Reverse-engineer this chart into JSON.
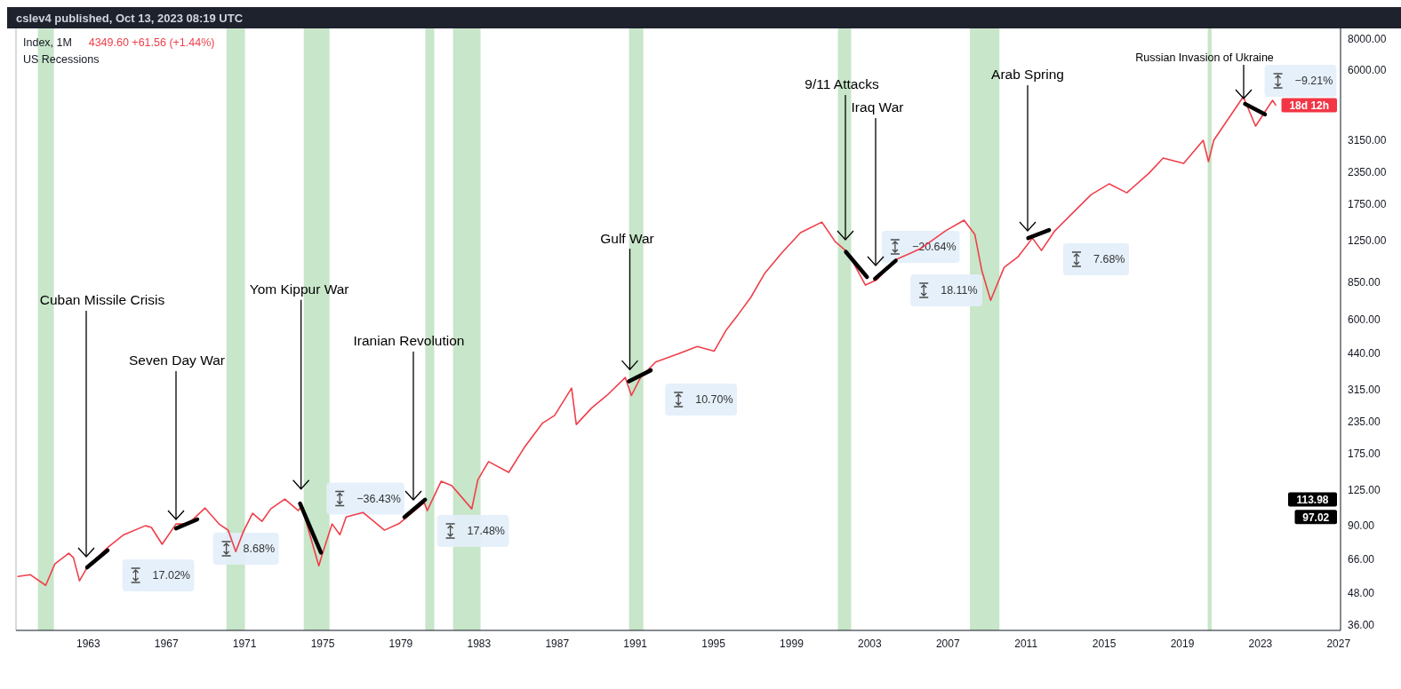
{
  "chart_data": {
    "type": "line",
    "title": "Index, 1M",
    "subtitle": "US Recessions",
    "xlim": [
      1959.3,
      2027.1
    ],
    "xticks": [
      1963,
      1967,
      1971,
      1975,
      1979,
      1983,
      1987,
      1991,
      1995,
      1999,
      2003,
      2007,
      2011,
      2015,
      2019,
      2023,
      2027
    ],
    "ylim": [
      34.1,
      8830
    ],
    "log": true,
    "yticks": [
      {
        "value": 36,
        "label": "36.00"
      },
      {
        "value": 48,
        "label": "48.00"
      },
      {
        "value": 66,
        "label": "66.00"
      },
      {
        "value": 90,
        "label": "90.00"
      },
      {
        "value": 125,
        "label": "125.00"
      },
      {
        "value": 175,
        "label": "175.00"
      },
      {
        "value": 235,
        "label": "235.00"
      },
      {
        "value": 315,
        "label": "315.00"
      },
      {
        "value": 440,
        "label": "440.00"
      },
      {
        "value": 600,
        "label": "600.00"
      },
      {
        "value": 850,
        "label": "850.00"
      },
      {
        "value": 1250,
        "label": "1250.00"
      },
      {
        "value": 1750,
        "label": "1750.00"
      },
      {
        "value": 2350,
        "label": "2350.00"
      },
      {
        "value": 3150,
        "label": "3150.00"
      },
      {
        "value": 6000,
        "label": "6000.00"
      },
      {
        "value": 8000,
        "label": "8000.00"
      }
    ],
    "series": [
      {
        "color": "#ef3f4b",
        "x": [
          1959.4,
          1960.04,
          1960.82,
          1961.29,
          1962.0,
          1962.24,
          1962.55,
          1962.94,
          1964.02,
          1964.82,
          1965.92,
          1966.23,
          1966.78,
          1967.49,
          1968.11,
          1968.98,
          1969.69,
          1970.16,
          1970.55,
          1970.93,
          1971.41,
          1971.89,
          1972.34,
          1973.06,
          1973.75,
          1973.92,
          1974.8,
          1975.02,
          1975.48,
          1975.88,
          1976.2,
          1977.06,
          1978.16,
          1978.94,
          1980.2,
          1980.35,
          1981.06,
          1981.61,
          1982.63,
          1982.94,
          1983.49,
          1984.52,
          1985.31,
          1986.25,
          1986.87,
          1987.74,
          1987.98,
          1988.77,
          1989.54,
          1990.49,
          1990.8,
          1991.27,
          1992.04,
          1993.13,
          1994.17,
          1995.04,
          1995.67,
          1996.27,
          1996.91,
          1997.63,
          1998.49,
          1999.46,
          2000.55,
          2001.23,
          2001.87,
          2002.78,
          2003.37,
          2004.28,
          2005.6,
          2006.87,
          2007.83,
          2008.38,
          2008.74,
          2009.19,
          2009.88,
          2010.6,
          2011.33,
          2011.79,
          2012.47,
          2013.56,
          2014.34,
          2015.25,
          2016.16,
          2017.29,
          2018.02,
          2019.07,
          2020.07,
          2020.34,
          2020.61,
          2021.75,
          2022.12,
          2022.75,
          2023.62,
          2023.78
        ],
        "values": [
          56.1,
          57.0,
          51.7,
          63.0,
          69.5,
          66.7,
          53.9,
          61.0,
          73.6,
          82.5,
          89.6,
          88.2,
          75.5,
          91.1,
          91.1,
          105.5,
          91.1,
          86.0,
          70.6,
          84.6,
          100.5,
          93.3,
          104.7,
          114.6,
          103.0,
          107.4,
          61.9,
          70.6,
          91.1,
          82.5,
          97.2,
          101.3,
          86.0,
          91.8,
          110.9,
          103.0,
          135,
          129.6,
          104.7,
          137,
          162,
          146.6,
          184,
          231,
          248,
          319,
          228,
          266,
          298,
          352,
          298,
          352,
          406,
          436,
          469,
          449,
          548,
          630,
          737,
          922,
          1110,
          1340,
          1478,
          1234,
          1119,
          826,
          868,
          1039,
          1156,
          1362,
          1503,
          1318,
          942,
          718,
          973,
          1074,
          1275,
          1137,
          1362,
          1658,
          1906,
          2103,
          1937,
          2320,
          2668,
          2539,
          3143,
          2582,
          3143,
          4256,
          4696,
          3584,
          4544,
          4349.6
        ]
      },
      {
        "color": "#000000",
        "x": [
          1962.94,
          1963.99
        ],
        "values": [
          61.0,
          71.4
        ]
      },
      {
        "color": "#000000",
        "x": [
          1967.49,
          1968.58
        ],
        "values": [
          87.4,
          95.0
        ]
      },
      {
        "color": "#000000",
        "x": [
          1973.84,
          1974.91
        ],
        "values": [
          110,
          69.9
        ]
      },
      {
        "color": "#000000",
        "x": [
          1979.18,
          1980.24
        ],
        "values": [
          97.02,
          113.98
        ]
      },
      {
        "color": "#000000",
        "x": [
          1990.67,
          1991.79
        ],
        "values": [
          340,
          376
        ]
      },
      {
        "color": "#000000",
        "x": [
          2001.78,
          2002.86
        ],
        "values": [
          1122,
          890
        ]
      },
      {
        "color": "#000000",
        "x": [
          2003.27,
          2004.33
        ],
        "values": [
          876,
          1035
        ]
      },
      {
        "color": "#000000",
        "x": [
          2011.11,
          2012.18
        ],
        "values": [
          1275,
          1373
        ]
      },
      {
        "color": "#000000",
        "x": [
          2022.21,
          2023.23
        ],
        "values": [
          4398,
          3993
        ]
      }
    ],
    "bands": [
      {
        "axis": "x",
        "from": 1960.42,
        "to": 1961.24,
        "color": "#c8e6c9"
      },
      {
        "axis": "x",
        "from": 1970.07,
        "to": 1971.02,
        "color": "#c8e6c9"
      },
      {
        "axis": "x",
        "from": 1974.03,
        "to": 1975.35,
        "color": "#c8e6c9"
      },
      {
        "axis": "x",
        "from": 1980.25,
        "to": 1980.71,
        "color": "#c8e6c9"
      },
      {
        "axis": "x",
        "from": 1981.67,
        "to": 1983.08,
        "color": "#c8e6c9"
      },
      {
        "axis": "x",
        "from": 1990.68,
        "to": 1991.41,
        "color": "#c8e6c9"
      },
      {
        "axis": "x",
        "from": 2001.37,
        "to": 2002.05,
        "color": "#c8e6c9"
      },
      {
        "axis": "x",
        "from": 2008.13,
        "to": 2009.64,
        "color": "#c8e6c9"
      },
      {
        "axis": "x",
        "from": 2020.3,
        "to": 2020.5,
        "color": "#c8e6c9"
      }
    ],
    "annotations": [
      "cslev4 published, Oct 13, 2023 08:19 UTC",
      "4349.60  +61.56 (+1.44%)",
      "Cuban Missile Crisis",
      "Seven Day War",
      {
        "text": "Yom Kippur War",
        "x": 1973.89,
        "y": 125.8
      },
      "Iranian Revolution",
      {
        "text": "Gulf War",
        "x": 1990.72,
        "y": 379
      },
      "9/11 Attacks",
      "Iraq War",
      "Arab Spring",
      "Russian Invasion of Ukraine",
      "17.02%",
      "8.68%",
      "−36.43%",
      "17.48%",
      "10.70%",
      "−20.64%",
      "18.11%",
      "7.68%",
      "−9.21%",
      "18d 12h",
      "113.98",
      "97.02"
    ]
  }
}
